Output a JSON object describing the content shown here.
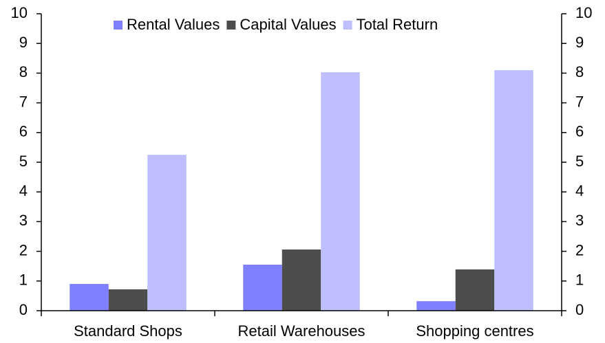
{
  "chart_data": {
    "type": "bar",
    "categories": [
      "Standard Shops",
      "Retail Warehouses",
      "Shopping centres"
    ],
    "series": [
      {
        "name": "Rental Values",
        "color": "#7f7fff",
        "values": [
          0.9,
          1.55,
          0.32
        ]
      },
      {
        "name": "Capital Values",
        "color": "#4d4d4d",
        "values": [
          0.72,
          2.06,
          1.39
        ]
      },
      {
        "name": "Total Return",
        "color": "#bfbfff",
        "values": [
          5.25,
          8.03,
          8.1
        ]
      }
    ],
    "ylim": [
      0,
      10
    ],
    "yticks": [
      0,
      1,
      2,
      3,
      4,
      5,
      6,
      7,
      8,
      9,
      10
    ],
    "y2lim": [
      0,
      10
    ],
    "y2ticks": [
      0,
      1,
      2,
      3,
      4,
      5,
      6,
      7,
      8,
      9,
      10
    ],
    "grid": false,
    "legend": "top"
  }
}
